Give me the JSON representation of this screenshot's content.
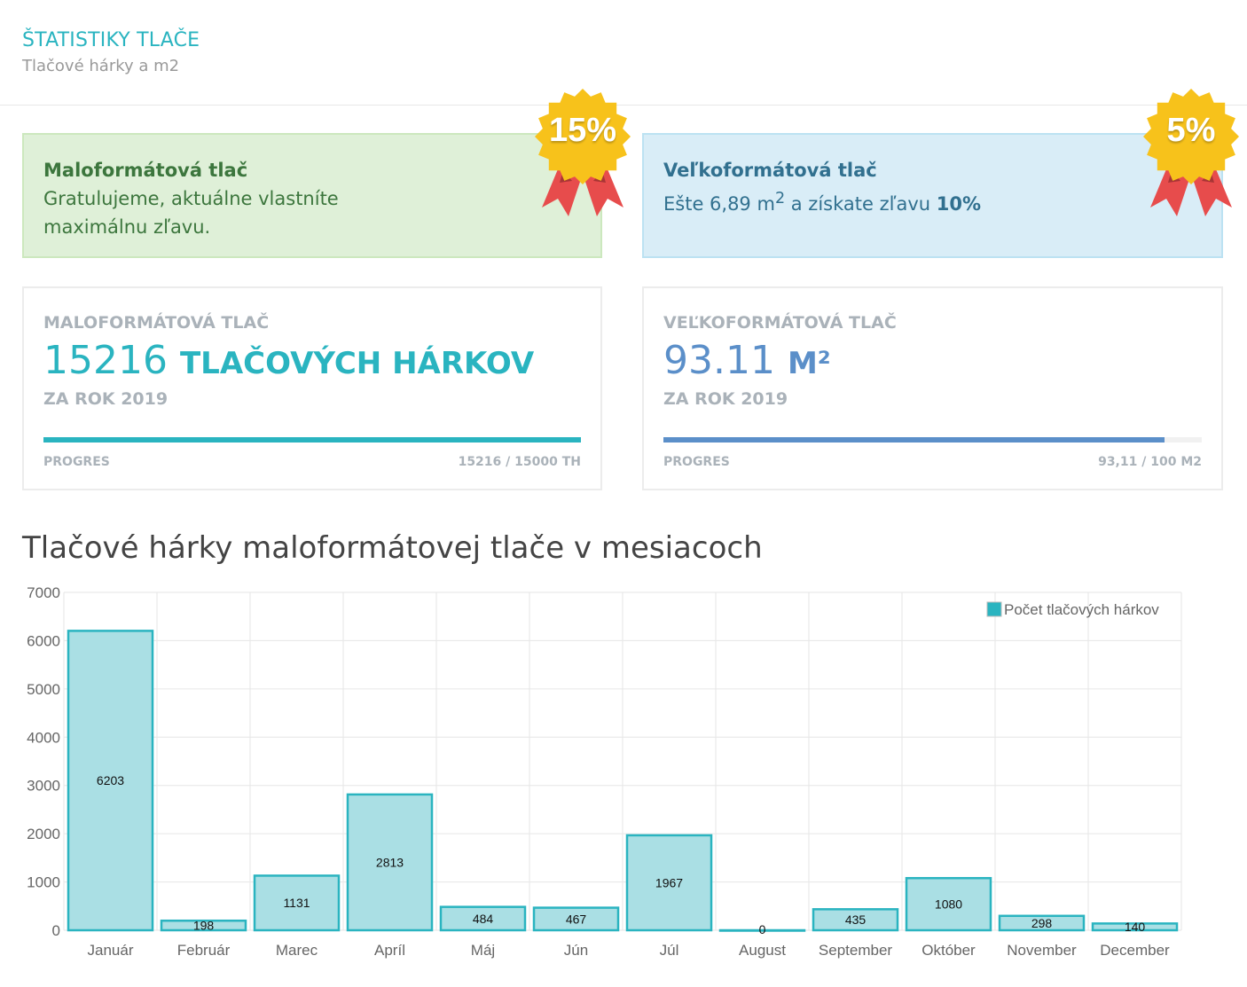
{
  "header": {
    "title": "ŠTATISTIKY TLAČE",
    "subtitle": "Tlačové hárky a m2"
  },
  "alerts": {
    "small": {
      "title": "Maloformátová tlač",
      "text": "Gratulujeme, aktuálne vlastníte maximálnu zľavu.",
      "badge": "15%"
    },
    "large": {
      "title": "Veľkoformátová tlač",
      "text_before": "Ešte 6,89 m",
      "text_sup": "2",
      "text_after": " a získate zľavu ",
      "text_bold": "10%",
      "badge": "5%"
    }
  },
  "stats": {
    "small": {
      "label": "MALOFORMÁTOVÁ TLAČ",
      "value": "15216",
      "unit": "TLAČOVÝCH HÁRKOV",
      "year": "ZA ROK 2019",
      "progress_label": "PROGRES",
      "progress_text": "15216 / 15000 TH",
      "progress_fraction": 1.0
    },
    "large": {
      "label": "VEĽKOFORMÁTOVÁ TLAČ",
      "value": "93.11",
      "unit": "M²",
      "year": "ZA ROK 2019",
      "progress_label": "PROGRES",
      "progress_text": "93,11 / 100 M2",
      "progress_fraction": 0.9311
    }
  },
  "chart_title": "Tlačové hárky maloformátovej tlače v mesiacoch",
  "colors": {
    "accent": "#2ab4c0",
    "blue": "#5b8fc9",
    "bar_fill": "#aadfe4",
    "bar_stroke": "#2ab4c0"
  },
  "chart_data": {
    "type": "bar",
    "categories": [
      "Január",
      "Február",
      "Marec",
      "Apríl",
      "Máj",
      "Jún",
      "Júl",
      "August",
      "September",
      "Október",
      "November",
      "December"
    ],
    "series": [
      {
        "name": "Počet tlačových hárkov",
        "values": [
          6203,
          198,
          1131,
          2813,
          484,
          467,
          1967,
          0,
          435,
          1080,
          298,
          140
        ]
      }
    ],
    "ylim": [
      0,
      7000
    ],
    "yticks": [
      0,
      1000,
      2000,
      3000,
      4000,
      5000,
      6000,
      7000
    ],
    "grid": true,
    "legend": "top-right",
    "data_labels": true
  }
}
